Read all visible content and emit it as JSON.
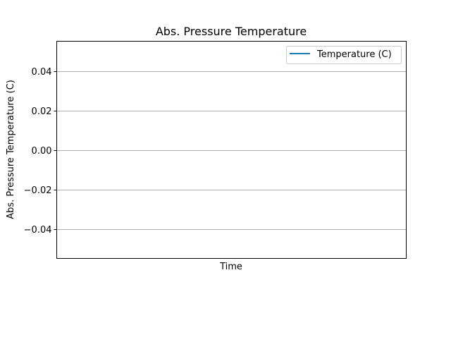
{
  "chart_data": {
    "type": "line",
    "title": "Abs. Pressure Temperature",
    "xlabel": "Time",
    "ylabel": "Abs. Pressure Temperature (C)",
    "ylim": [
      -0.055,
      0.055
    ],
    "y_ticks": [
      0.04,
      0.02,
      0.0,
      -0.02,
      -0.04
    ],
    "y_tick_labels": [
      "0.04",
      "0.02",
      "0.00",
      "−0.02",
      "−0.04"
    ],
    "x_ticks": [],
    "grid": "horizontal",
    "legend_position": "top-right",
    "series": [
      {
        "name": "Temperature (C)",
        "color": "#1f77b4",
        "x": [],
        "y": []
      }
    ]
  }
}
